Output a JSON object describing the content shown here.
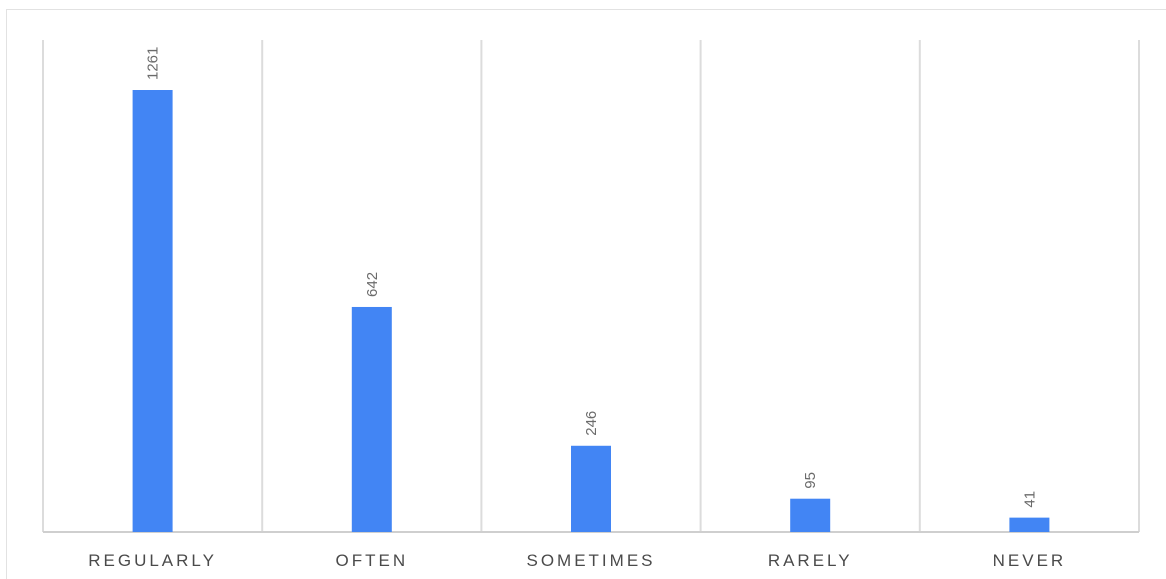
{
  "chart_data": {
    "type": "bar",
    "categories": [
      "REGULARLY",
      "OFTEN",
      "SOMETIMES",
      "RARELY",
      "NEVER"
    ],
    "values": [
      1261,
      642,
      246,
      95,
      41
    ],
    "title": "",
    "xlabel": "",
    "ylabel": "",
    "ylim": [
      0,
      1400
    ],
    "grid": "vertical category separators",
    "legend": "none",
    "data_labels": [
      "1261",
      "642",
      "246",
      "95",
      "41"
    ],
    "bar_color": "#4285f4"
  }
}
